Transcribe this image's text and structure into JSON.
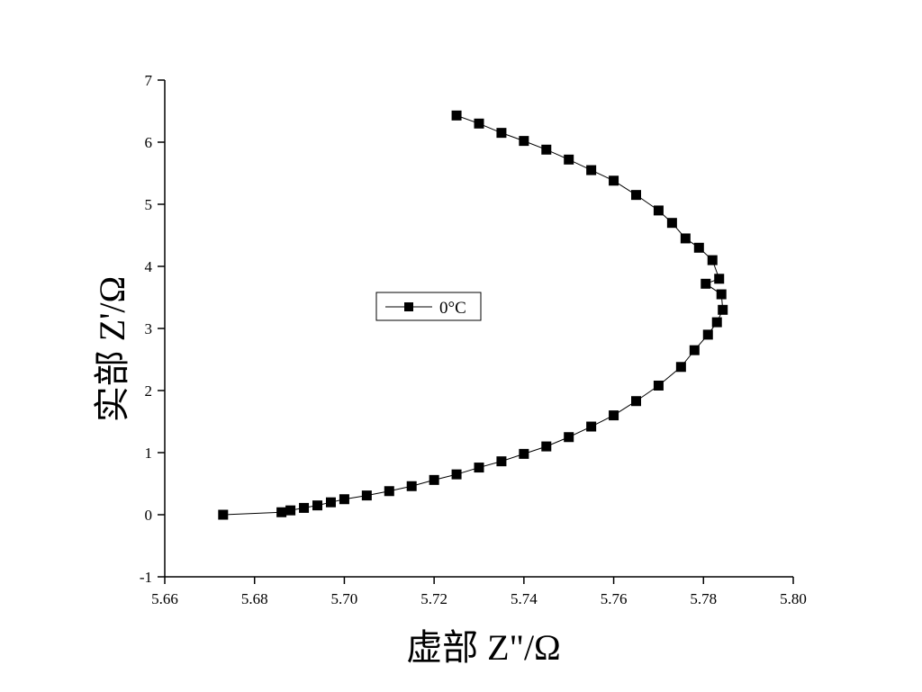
{
  "chart_data": {
    "type": "line",
    "x_label": "虚部 Z\"/Ω",
    "y_label": "实部 Z'/Ω",
    "x": [
      5.673,
      5.686,
      5.688,
      5.691,
      5.694,
      5.697,
      5.7,
      5.705,
      5.71,
      5.715,
      5.72,
      5.725,
      5.73,
      5.735,
      5.74,
      5.745,
      5.75,
      5.755,
      5.76,
      5.765,
      5.77,
      5.775,
      5.778,
      5.781,
      5.783,
      5.7843,
      5.784,
      5.7805,
      5.7835,
      5.782,
      5.779,
      5.776,
      5.773,
      5.77,
      5.765,
      5.76,
      5.755,
      5.75,
      5.745,
      5.74,
      5.735,
      5.73,
      5.725
    ],
    "series": [
      {
        "name": "0°C",
        "color": "#000000",
        "values": [
          0,
          0.04,
          0.07,
          0.11,
          0.15,
          0.2,
          0.25,
          0.31,
          0.38,
          0.46,
          0.56,
          0.65,
          0.76,
          0.86,
          0.98,
          1.1,
          1.25,
          1.42,
          1.6,
          1.83,
          2.08,
          2.38,
          2.65,
          2.9,
          3.1,
          3.3,
          3.55,
          3.72,
          3.8,
          4.1,
          4.3,
          4.45,
          4.7,
          4.9,
          5.15,
          5.38,
          5.55,
          5.72,
          5.88,
          6.02,
          6.15,
          6.3,
          6.43
        ]
      }
    ],
    "xlim": [
      5.66,
      5.8
    ],
    "xticks": [
      5.66,
      5.68,
      {
        "value": 5.7,
        "label": "5.70"
      },
      5.72,
      5.74,
      5.76,
      5.78,
      {
        "value": 5.8,
        "label": "5.80"
      }
    ],
    "ylim": [
      -1,
      7
    ],
    "yticks": [
      -1,
      0,
      1,
      2,
      3,
      4,
      5,
      6,
      7
    ],
    "marker": "square",
    "legend": "center-left"
  }
}
